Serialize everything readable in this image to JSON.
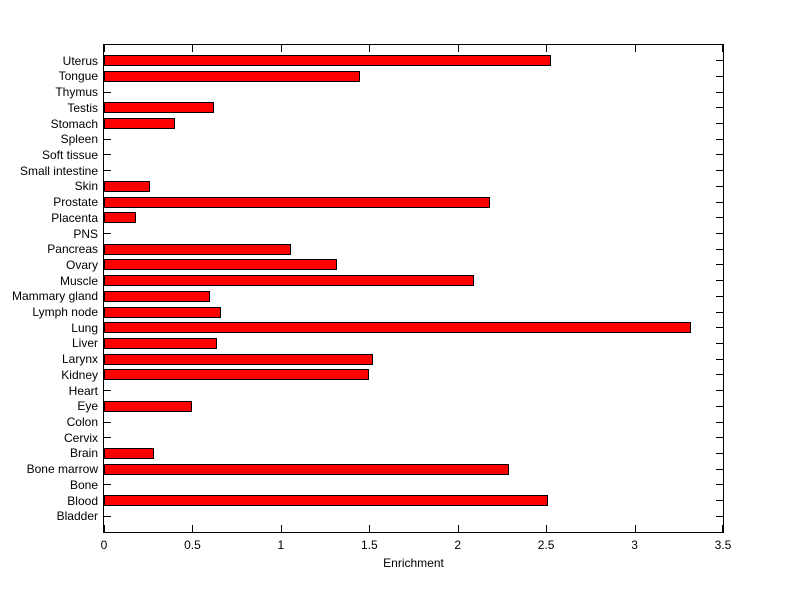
{
  "figure": {
    "background": "#ffffff",
    "plot_background": "#ffffff",
    "axis_color": "#000000"
  },
  "chart_data": {
    "type": "bar",
    "orientation": "horizontal",
    "title": "",
    "xlabel": "Enrichment",
    "ylabel": "",
    "xlim": [
      0,
      3.5
    ],
    "xtick_values": [
      0,
      0.5,
      1,
      1.5,
      2,
      2.5,
      3,
      3.5
    ],
    "xtick_labels": [
      "0",
      "0.5",
      "1",
      "1.5",
      "2",
      "2.5",
      "3",
      "3.5"
    ],
    "grid": false,
    "legend": null,
    "bar_color": "#ff0000",
    "bar_edge_color": "#000000",
    "categories": [
      "Uterus",
      "Tongue",
      "Thymus",
      "Testis",
      "Stomach",
      "Spleen",
      "Soft tissue",
      "Small intestine",
      "Skin",
      "Prostate",
      "Placenta",
      "PNS",
      "Pancreas",
      "Ovary",
      "Muscle",
      "Mammary gland",
      "Lymph node",
      "Lung",
      "Liver",
      "Larynx",
      "Kidney",
      "Heart",
      "Eye",
      "Colon",
      "Cervix",
      "Brain",
      "Bone marrow",
      "Bone",
      "Blood",
      "Bladder"
    ],
    "values": [
      2.53,
      1.45,
      0,
      0.62,
      0.4,
      0,
      0,
      0,
      0.26,
      2.18,
      0.18,
      0,
      1.06,
      1.32,
      2.09,
      0.6,
      0.66,
      3.32,
      0.64,
      1.52,
      1.5,
      0,
      0.5,
      0,
      0,
      0.28,
      2.29,
      0,
      2.51,
      0
    ]
  }
}
